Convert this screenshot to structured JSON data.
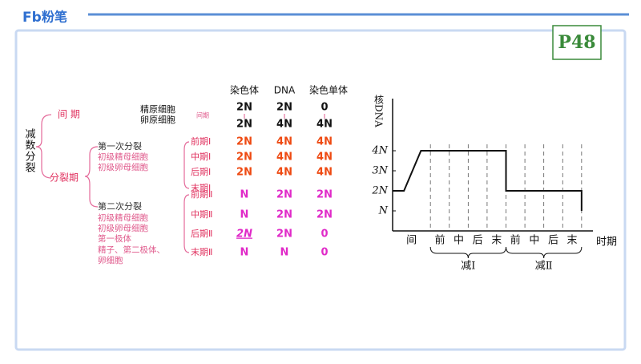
{
  "logo": {
    "mark": "Fb",
    "name": "粉笔"
  },
  "page_label": "P48",
  "table": {
    "title": "减数分裂",
    "headers": [
      "染色体",
      "DNA",
      "染色单体"
    ],
    "interphase": {
      "label": "间 期",
      "cells": [
        "精原细胞",
        "卵原细胞"
      ],
      "stage": "间期",
      "before": [
        "2N",
        "2N",
        "0"
      ],
      "after": [
        "2N",
        "4N",
        "4N"
      ]
    },
    "division": {
      "label": "分裂期",
      "meiosis": [
        {
          "label": "第一次分裂",
          "cells": [
            "初级精母细胞",
            "初级卵母细胞"
          ],
          "rows": [
            {
              "stage": "前期Ⅰ",
              "values": [
                "2N",
                "4N",
                "4N"
              ]
            },
            {
              "stage": "中期Ⅰ",
              "values": [
                "2N",
                "4N",
                "4N"
              ]
            },
            {
              "stage": "后期Ⅰ",
              "values": [
                "2N",
                "4N",
                "4N"
              ]
            },
            {
              "stage": "末期Ⅰ",
              "values": []
            }
          ]
        },
        {
          "label": "第二次分裂",
          "cells": [
            "初级精母细胞",
            "初级卵母细胞",
            "第一极体",
            "精子、第二极体、",
            "卵细胞"
          ],
          "rows": [
            {
              "stage": "前期Ⅱ",
              "values": [
                "N",
                "2N",
                "2N"
              ]
            },
            {
              "stage": "中期Ⅱ",
              "values": [
                "N",
                "2N",
                "2N"
              ]
            },
            {
              "stage": "后期Ⅱ",
              "values": [
                "2N",
                "2N",
                "0"
              ]
            },
            {
              "stage": "末期Ⅱ",
              "values": [
                "N",
                "N",
                "0"
              ]
            }
          ]
        }
      ]
    }
  },
  "chart_data": {
    "type": "line",
    "ylabel": "核DNA",
    "xlabel": "时期",
    "categories": [
      "间",
      "前",
      "中",
      "后",
      "末",
      "前",
      "中",
      "后",
      "末"
    ],
    "groups": [
      "减Ⅰ",
      "减Ⅱ"
    ],
    "x": [
      0,
      0.6,
      1.5,
      6,
      6,
      10,
      10
    ],
    "values": [
      2,
      2,
      4,
      4,
      2,
      2,
      1
    ],
    "color": "#111111",
    "xlim": [
      0,
      10.6
    ],
    "ylim": [
      0,
      6.6
    ],
    "yticks": [
      {
        "value": 1,
        "label": "N"
      },
      {
        "value": 2,
        "label": "2N"
      },
      {
        "value": 3,
        "label": "3N"
      },
      {
        "value": 4,
        "label": "4N"
      }
    ]
  }
}
